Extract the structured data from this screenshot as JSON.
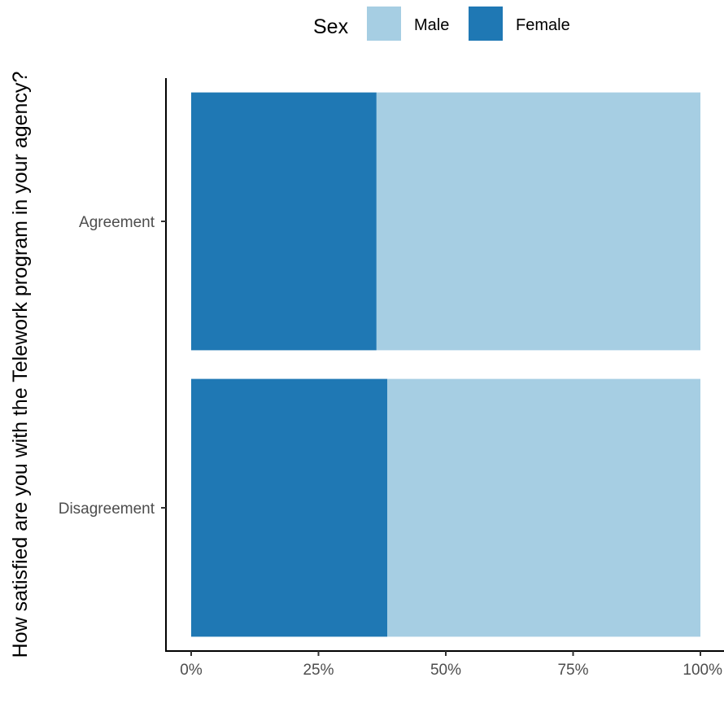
{
  "chart_data": {
    "type": "bar",
    "orientation": "horizontal",
    "stacked": true,
    "percent": true,
    "ylabel": "How satisfied are you with the Telework program in your agency?",
    "xlabel": "",
    "categories": [
      "Agreement",
      "Disagreement"
    ],
    "series": [
      {
        "name": "Female",
        "values": [
          36.4,
          38.5
        ],
        "color": "#1f78b4"
      },
      {
        "name": "Male",
        "values": [
          63.6,
          61.5
        ],
        "color": "#a6cee3"
      }
    ],
    "xlim": [
      0,
      100
    ],
    "xticks": [
      0,
      25,
      50,
      75,
      100
    ],
    "xtick_labels": [
      "0%",
      "25%",
      "50%",
      "75%",
      "100%"
    ],
    "grid": false,
    "legend": {
      "title": "Sex",
      "position": "top",
      "entries": [
        {
          "label": "Male",
          "color": "#a6cee3"
        },
        {
          "label": "Female",
          "color": "#1f78b4"
        }
      ]
    }
  }
}
